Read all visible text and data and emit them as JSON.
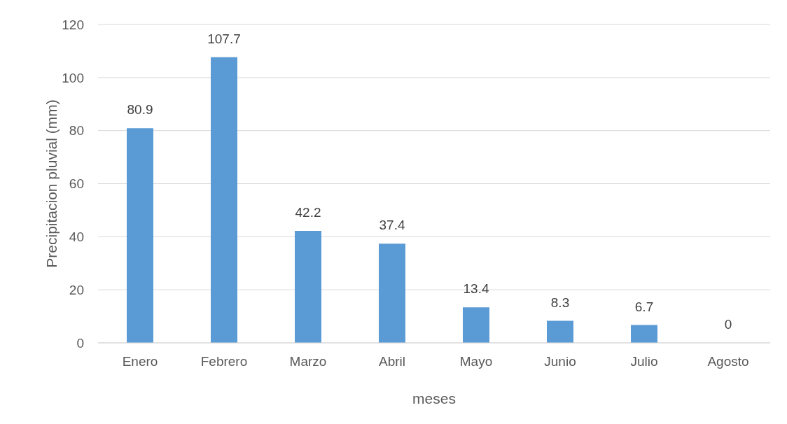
{
  "chart_data": {
    "type": "bar",
    "xlabel": "meses",
    "ylabel": "Precipitacion pluvial (mm)",
    "categories": [
      "Enero",
      "Febrero",
      "Marzo",
      "Abril",
      "Mayo",
      "Junio",
      "Julio",
      "Agosto"
    ],
    "values": [
      80.9,
      107.7,
      42.2,
      37.4,
      13.4,
      8.3,
      6.7,
      0
    ],
    "color": "#5b9bd5",
    "ylim": [
      0,
      120
    ],
    "yticks": [
      0,
      20,
      40,
      60,
      80,
      100,
      120
    ],
    "grid": "y",
    "data_labels": true
  }
}
